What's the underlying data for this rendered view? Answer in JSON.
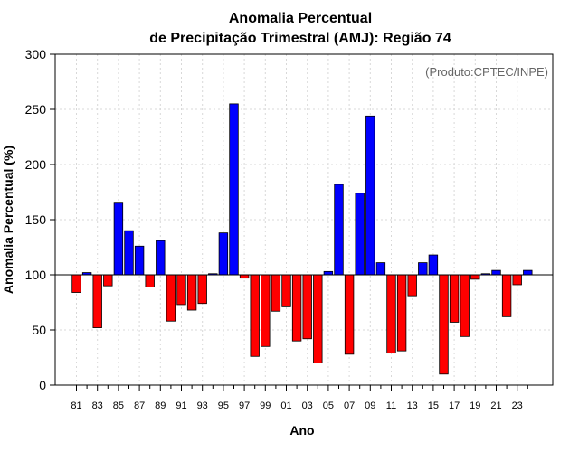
{
  "chart_data": {
    "type": "bar",
    "title": "Anomalia Percentual",
    "subtitle": "de Precipitação Trimestral (AMJ): Região 74",
    "credit": "(Produto:CPTEC/INPE)",
    "xlabel": "Ano",
    "ylabel": "Anomalia Percentual (%)",
    "ylim": [
      0,
      300
    ],
    "yticks": [
      0,
      50,
      100,
      150,
      200,
      250,
      300
    ],
    "baseline": 100,
    "grid": true,
    "color_above": "#0000ff",
    "color_below": "#ff0000",
    "categories": [
      "81",
      "82",
      "83",
      "84",
      "85",
      "86",
      "87",
      "88",
      "89",
      "90",
      "91",
      "92",
      "93",
      "94",
      "95",
      "96",
      "97",
      "98",
      "99",
      "00",
      "01",
      "02",
      "03",
      "04",
      "05",
      "06",
      "07",
      "08",
      "09",
      "10",
      "11",
      "12",
      "13",
      "14",
      "15",
      "16",
      "17",
      "18",
      "19",
      "20",
      "21",
      "22",
      "23",
      "24"
    ],
    "tick_labels": [
      "81",
      "83",
      "85",
      "87",
      "89",
      "91",
      "93",
      "95",
      "97",
      "99",
      "01",
      "03",
      "05",
      "07",
      "09",
      "11",
      "13",
      "15",
      "17",
      "19",
      "21",
      "23"
    ],
    "values": [
      84,
      102,
      52,
      90,
      165,
      140,
      126,
      89,
      131,
      58,
      73,
      68,
      74,
      101,
      138,
      255,
      97,
      26,
      35,
      67,
      71,
      40,
      42,
      20,
      103,
      182,
      28,
      174,
      244,
      111,
      29,
      31,
      81,
      111,
      118,
      10,
      57,
      44,
      96,
      101,
      104,
      62,
      91,
      104
    ]
  }
}
